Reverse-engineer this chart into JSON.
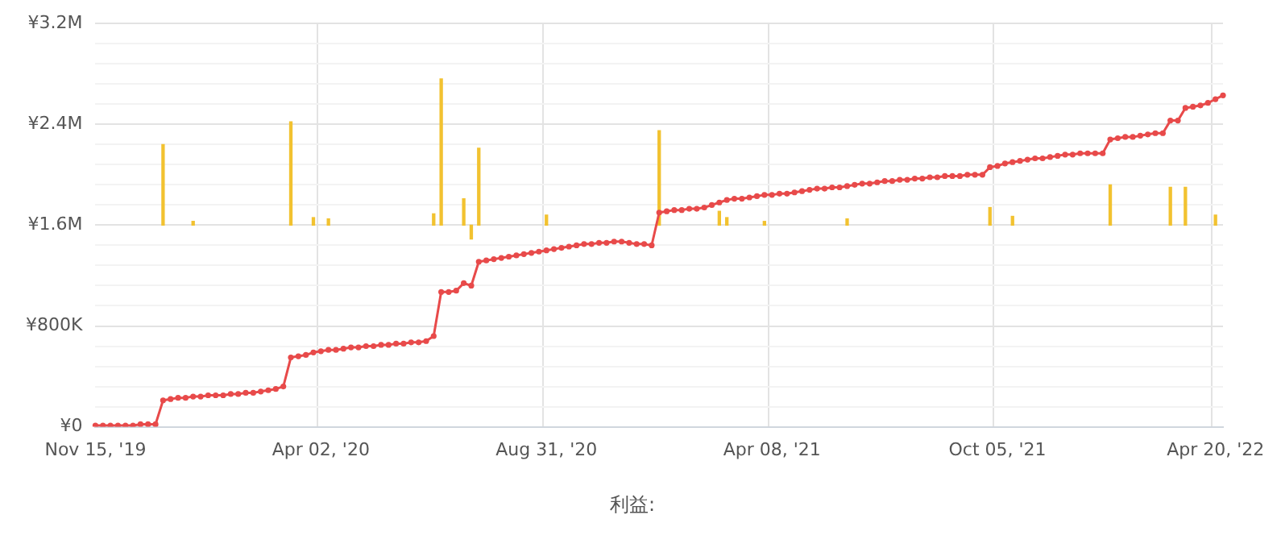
{
  "chart_data": {
    "type": "line",
    "legend": "bottom",
    "grid": true,
    "marker": "circle",
    "line_style": "solid",
    "categories": [
      "Nov 15, '19",
      null,
      null,
      null,
      null,
      null,
      null,
      null,
      null,
      null,
      null,
      null,
      null,
      null,
      null,
      null,
      null,
      null,
      null,
      null,
      null,
      null,
      null,
      null,
      null,
      null,
      null,
      null,
      null,
      null,
      "Apr 02, '20",
      null,
      null,
      null,
      null,
      null,
      null,
      null,
      null,
      null,
      null,
      null,
      null,
      null,
      null,
      null,
      null,
      null,
      null,
      null,
      null,
      null,
      null,
      null,
      null,
      null,
      null,
      null,
      null,
      null,
      "Aug 31, '20",
      null,
      null,
      null,
      null,
      null,
      null,
      null,
      null,
      null,
      null,
      null,
      null,
      null,
      null,
      null,
      null,
      null,
      null,
      null,
      null,
      null,
      null,
      null,
      null,
      null,
      null,
      null,
      null,
      null,
      "Apr 08, '21",
      null,
      null,
      null,
      null,
      null,
      null,
      null,
      null,
      null,
      null,
      null,
      null,
      null,
      null,
      null,
      null,
      null,
      null,
      null,
      null,
      null,
      null,
      null,
      null,
      null,
      null,
      null,
      null,
      null,
      "Oct 05, '21",
      null,
      null,
      null,
      null,
      null,
      null,
      null,
      null,
      null,
      null,
      null,
      null,
      null,
      null,
      null,
      null,
      null,
      null,
      null,
      null,
      null,
      null,
      null,
      null,
      null,
      null,
      null,
      null,
      "Apr 20, '22",
      null
    ],
    "ylim": [
      0,
      3200000
    ],
    "yticks": [
      {
        "value": 0,
        "label": "¥0"
      },
      {
        "value": 160000,
        "label": null
      },
      {
        "value": 320000,
        "label": null
      },
      {
        "value": 480000,
        "label": null
      },
      {
        "value": 640000,
        "label": null
      },
      {
        "value": 800000,
        "label": "¥800K"
      },
      {
        "value": 960000,
        "label": null
      },
      {
        "value": 1120000,
        "label": null
      },
      {
        "value": 1280000,
        "label": null
      },
      {
        "value": 1440000,
        "label": null
      },
      {
        "value": 1600000,
        "label": "¥1.6M"
      },
      {
        "value": 1760000,
        "label": null
      },
      {
        "value": 1920000,
        "label": null
      },
      {
        "value": 2080000,
        "label": null
      },
      {
        "value": 2240000,
        "label": null
      },
      {
        "value": 2400000,
        "label": "¥2.4M"
      },
      {
        "value": 2560000,
        "label": null
      },
      {
        "value": 2720000,
        "label": null
      },
      {
        "value": 2880000,
        "label": null
      },
      {
        "value": 3040000,
        "label": null
      },
      {
        "value": 3200000,
        "label": "¥3.2M"
      }
    ],
    "series": [
      {
        "type": "bar",
        "color": "#f2c230",
        "base": [
          null,
          null,
          null,
          null,
          null,
          null,
          null,
          null,
          null,
          1600000,
          null,
          null,
          null,
          1600000,
          null,
          null,
          null,
          null,
          null,
          null,
          null,
          null,
          null,
          null,
          null,
          null,
          1600000,
          null,
          null,
          1600000,
          null,
          1600000,
          null,
          null,
          null,
          null,
          null,
          null,
          null,
          null,
          null,
          null,
          null,
          null,
          null,
          1600000,
          1600000,
          null,
          null,
          1600000,
          1600000,
          1600000,
          null,
          null,
          null,
          null,
          null,
          null,
          null,
          null,
          1600000,
          null,
          null,
          null,
          null,
          null,
          null,
          null,
          null,
          null,
          null,
          null,
          null,
          null,
          null,
          1600000,
          null,
          null,
          null,
          null,
          null,
          null,
          null,
          1600000,
          1600000,
          null,
          null,
          null,
          null,
          1600000,
          null,
          null,
          null,
          null,
          null,
          null,
          null,
          null,
          null,
          null,
          1600000,
          null,
          null,
          null,
          null,
          null,
          null,
          null,
          null,
          null,
          null,
          null,
          null,
          null,
          null,
          null,
          null,
          null,
          null,
          1600000,
          null,
          null,
          1600000,
          null,
          null,
          null,
          null,
          null,
          null,
          null,
          null,
          null,
          null,
          null,
          null,
          1600000,
          null,
          null,
          null,
          null,
          null,
          null,
          null,
          1600000,
          null,
          1600000,
          null,
          null,
          null,
          1600000,
          null
        ],
        "values": [
          null,
          null,
          null,
          null,
          null,
          null,
          null,
          null,
          null,
          640000,
          null,
          null,
          null,
          30000,
          null,
          null,
          null,
          null,
          null,
          null,
          null,
          null,
          null,
          null,
          null,
          null,
          820000,
          null,
          null,
          60000,
          null,
          50000,
          null,
          null,
          null,
          null,
          null,
          null,
          null,
          null,
          null,
          null,
          null,
          null,
          null,
          90000,
          1160000,
          null,
          null,
          210000,
          -110000,
          610000,
          null,
          null,
          null,
          null,
          null,
          null,
          null,
          null,
          80000,
          null,
          null,
          null,
          null,
          null,
          null,
          null,
          null,
          null,
          null,
          null,
          null,
          null,
          null,
          750000,
          null,
          null,
          null,
          null,
          null,
          null,
          null,
          110000,
          60000,
          null,
          null,
          null,
          null,
          30000,
          null,
          null,
          null,
          null,
          null,
          null,
          null,
          null,
          null,
          null,
          50000,
          null,
          null,
          null,
          null,
          null,
          null,
          null,
          null,
          null,
          null,
          null,
          null,
          null,
          null,
          null,
          null,
          null,
          null,
          140000,
          null,
          null,
          70000,
          null,
          null,
          null,
          null,
          null,
          null,
          null,
          null,
          null,
          null,
          null,
          null,
          320000,
          null,
          null,
          null,
          null,
          null,
          null,
          null,
          300000,
          null,
          300000,
          null,
          null,
          null,
          80000,
          null
        ]
      },
      {
        "name": "利益:",
        "color": "#e84a4a",
        "values": [
          10000,
          10000,
          10000,
          10000,
          10000,
          10000,
          20000,
          20000,
          20000,
          210000,
          220000,
          230000,
          230000,
          240000,
          240000,
          250000,
          250000,
          250000,
          260000,
          260000,
          270000,
          270000,
          280000,
          290000,
          300000,
          320000,
          550000,
          560000,
          570000,
          590000,
          600000,
          610000,
          610000,
          620000,
          630000,
          630000,
          640000,
          640000,
          650000,
          650000,
          660000,
          660000,
          670000,
          670000,
          680000,
          720000,
          1070000,
          1070000,
          1080000,
          1140000,
          1120000,
          1310000,
          1320000,
          1330000,
          1340000,
          1350000,
          1360000,
          1370000,
          1380000,
          1390000,
          1400000,
          1410000,
          1420000,
          1430000,
          1440000,
          1450000,
          1450000,
          1460000,
          1460000,
          1470000,
          1470000,
          1460000,
          1450000,
          1450000,
          1440000,
          1700000,
          1710000,
          1720000,
          1720000,
          1730000,
          1730000,
          1740000,
          1760000,
          1780000,
          1800000,
          1810000,
          1810000,
          1820000,
          1830000,
          1840000,
          1840000,
          1850000,
          1850000,
          1860000,
          1870000,
          1880000,
          1890000,
          1890000,
          1900000,
          1900000,
          1910000,
          1920000,
          1930000,
          1930000,
          1940000,
          1950000,
          1950000,
          1960000,
          1960000,
          1970000,
          1970000,
          1980000,
          1980000,
          1990000,
          1990000,
          1990000,
          2000000,
          2000000,
          2000000,
          2060000,
          2070000,
          2090000,
          2100000,
          2110000,
          2120000,
          2130000,
          2130000,
          2140000,
          2150000,
          2160000,
          2160000,
          2170000,
          2170000,
          2170000,
          2170000,
          2280000,
          2290000,
          2300000,
          2300000,
          2310000,
          2320000,
          2330000,
          2330000,
          2430000,
          2430000,
          2530000,
          2540000,
          2550000,
          2570000,
          2600000,
          2630000
        ]
      }
    ]
  }
}
